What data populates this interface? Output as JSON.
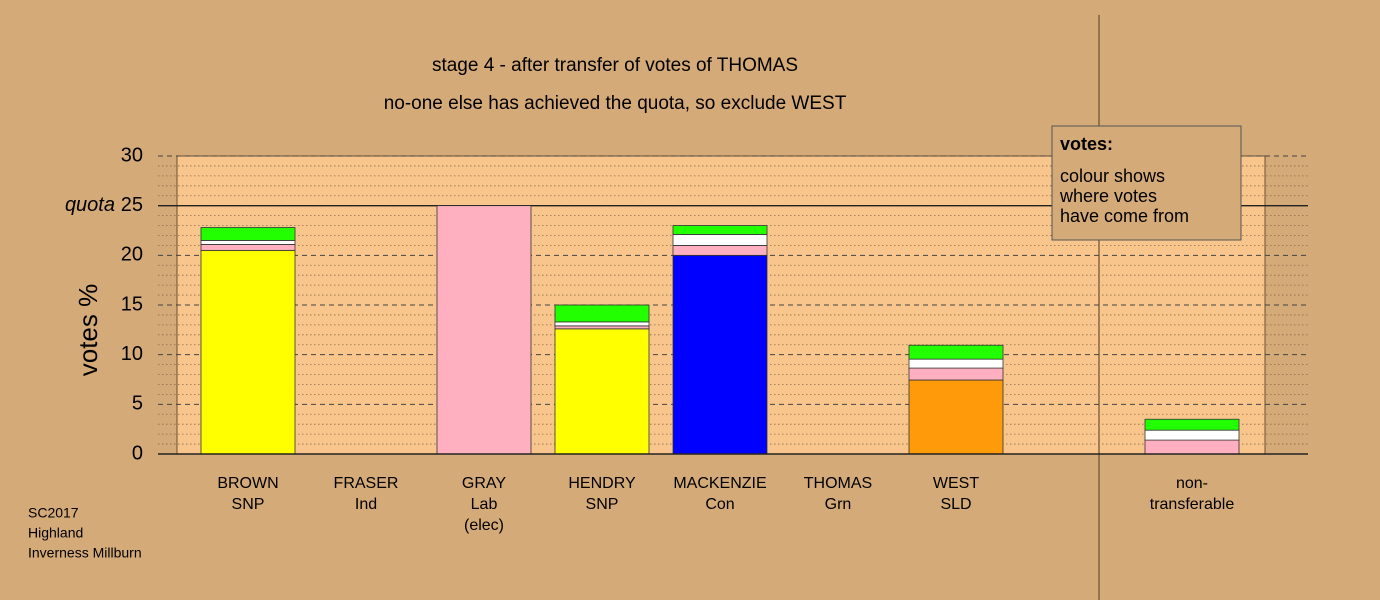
{
  "chart_data": {
    "type": "bar",
    "stacked": true,
    "title": "stage 4 - after transfer of votes of THOMAS",
    "subtitle": "no-one else has achieved the quota, so exclude WEST",
    "y_label": "votes %",
    "categories": [
      [
        "BROWN",
        "SNP"
      ],
      [
        "FRASER",
        "Ind"
      ],
      [
        "GRAY",
        "Lab",
        "(elec)"
      ],
      [
        "HENDRY",
        "SNP"
      ],
      [
        "MACKENZIE",
        "Con"
      ],
      [
        "THOMAS",
        "Grn"
      ],
      [
        "WEST",
        "SLD"
      ],
      null,
      [
        "non-",
        "transferable"
      ]
    ],
    "series": [
      {
        "color": "#ffff00",
        "values": [
          20.5,
          0,
          0,
          12.6,
          0,
          0,
          0,
          null,
          0
        ]
      },
      {
        "color": "#0000ff",
        "values": [
          0,
          0,
          0,
          0,
          20.0,
          0,
          0,
          null,
          0
        ]
      },
      {
        "color": "#ff9a0a",
        "values": [
          0,
          0,
          0,
          0,
          0,
          0,
          7.45,
          null,
          0
        ]
      },
      {
        "color": "#ffb0c0",
        "values": [
          0.6,
          0,
          25,
          0.3,
          1.0,
          0,
          1.2,
          null,
          1.4
        ]
      },
      {
        "color": "#ffffff",
        "values": [
          0.4,
          0,
          0,
          0.4,
          1.1,
          0,
          0.9,
          null,
          1.0
        ]
      },
      {
        "color": "#22ff00",
        "values": [
          1.3,
          0,
          0,
          1.7,
          0.9,
          0,
          1.4,
          null,
          1.1
        ]
      }
    ],
    "ylim": [
      0,
      30
    ],
    "yticks": [
      0,
      5,
      10,
      15,
      20,
      25,
      30
    ],
    "minor_tick_step": 1,
    "grid": true,
    "quota": {
      "value": 25,
      "label": "quota"
    },
    "legend": {
      "title": "votes:",
      "lines": [
        "colour shows",
        "where votes",
        "have come from"
      ]
    },
    "footnote": [
      "SC2017",
      "Highland",
      "Inverness Millburn"
    ]
  }
}
